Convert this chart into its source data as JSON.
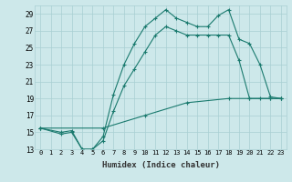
{
  "xlabel": "Humidex (Indice chaleur)",
  "background_color": "#cde8ea",
  "grid_color": "#a8cfd2",
  "line_color": "#1a7a6e",
  "xlim": [
    -0.5,
    23.5
  ],
  "ylim": [
    13,
    30
  ],
  "xticks": [
    0,
    1,
    2,
    3,
    4,
    5,
    6,
    7,
    8,
    9,
    10,
    11,
    12,
    13,
    14,
    15,
    16,
    17,
    18,
    19,
    20,
    21,
    22,
    23
  ],
  "yticks": [
    13,
    15,
    17,
    19,
    21,
    23,
    25,
    27,
    29
  ],
  "line1_x": [
    0,
    2,
    3,
    4,
    5,
    6,
    7,
    8,
    9,
    10,
    11,
    12,
    13,
    14,
    15,
    16,
    17,
    18,
    19,
    20,
    21,
    22,
    23
  ],
  "line1_y": [
    15.5,
    15.0,
    15.2,
    13.0,
    13.0,
    14.5,
    19.5,
    23.0,
    25.5,
    27.5,
    28.5,
    29.5,
    28.5,
    28.0,
    27.5,
    27.5,
    28.8,
    29.5,
    26.0,
    25.5,
    23.0,
    19.2,
    19.0
  ],
  "line2_x": [
    0,
    2,
    3,
    4,
    5,
    6,
    7,
    8,
    9,
    10,
    11,
    12,
    13,
    14,
    15,
    16,
    17,
    18,
    19,
    20,
    21,
    22,
    23
  ],
  "line2_y": [
    15.5,
    14.8,
    15.0,
    13.0,
    13.0,
    14.0,
    17.5,
    20.5,
    22.5,
    24.5,
    26.5,
    27.5,
    27.0,
    26.5,
    26.5,
    26.5,
    26.5,
    26.5,
    23.5,
    19.0,
    19.0,
    19.0,
    19.0
  ],
  "line3_x": [
    0,
    6,
    10,
    14,
    18,
    20,
    22,
    23
  ],
  "line3_y": [
    15.5,
    15.5,
    17.0,
    18.5,
    19.0,
    19.0,
    19.0,
    19.0
  ]
}
